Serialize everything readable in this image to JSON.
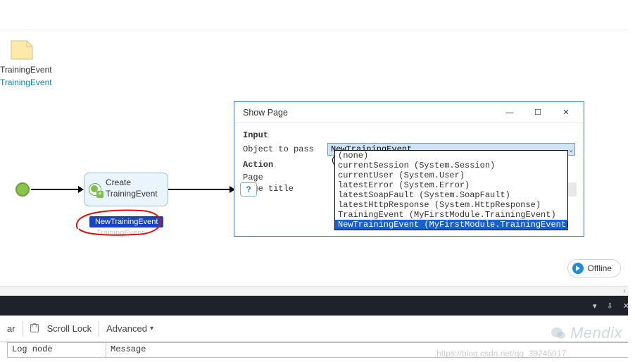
{
  "canvas": {
    "entity_shape": {
      "fill": "#ffe9a8",
      "stroke": "#d3c187"
    },
    "entity_label_top": "TrainingEvent",
    "entity_label_bottom": "TrainingEvent",
    "start_node_color": "#8bc34a",
    "activity": {
      "line1": "Create",
      "line2": "TrainingEvent",
      "bg": "#eaf4fc",
      "border": "#9cbfd9"
    },
    "output_var": "NewTrainingEvent",
    "output_var_type": "TrainingEvent",
    "output_var_bg": "#1545c4"
  },
  "dialog": {
    "title": "Show Page",
    "section_input": "Input",
    "label_object_to_pass": "Object to pass",
    "section_action": "Action",
    "label_page": "Page",
    "label_page_title": "Page title",
    "combo_value": "NewTrainingEvent (MyFirstModule.TrainingEvent)",
    "options": [
      "(none)",
      "currentSession (System.Session)",
      "currentUser (System.User)",
      "latestError (System.Error)",
      "latestSoapFault (System.SoapFault)",
      "latestHttpResponse (System.HttpResponse)",
      "TrainingEvent (MyFirstModule.TrainingEvent)",
      "NewTrainingEvent (MyFirstModule.TrainingEvent)"
    ],
    "selected_index": 7,
    "help_label": "?",
    "border_color": "#2e7cbf"
  },
  "offline_badge": "Offline",
  "toolbar": {
    "item_ar": "ar",
    "item_scroll_lock": "Scroll Lock",
    "item_advanced": "Advanced"
  },
  "log_table": {
    "col1": "Log node",
    "col2": "Message"
  },
  "watermark_brand": "Mendix",
  "watermark_url": "https://blog.csdn.net/qq_39245017",
  "annotation_color": "#d11"
}
